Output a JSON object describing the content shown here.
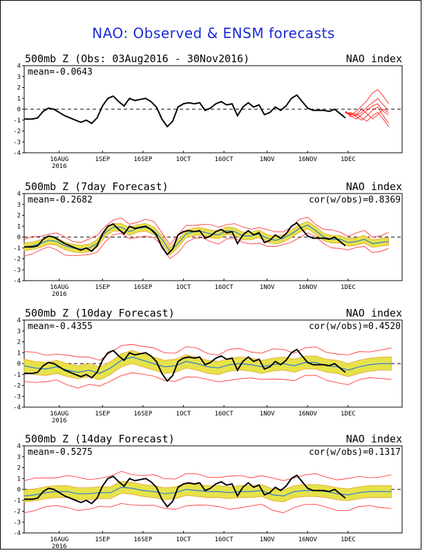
{
  "title": "NAO: Observed & ENSM forecasts",
  "colors": {
    "observed": "#000000",
    "ensemble_mean": "#2c7bd6",
    "spread_fill": "#e6e24a",
    "spread_edge": "#e8a030",
    "min_max": "#ff2020",
    "title": "#1a2bd6"
  },
  "xaxis": {
    "ticks": [
      {
        "day": 13,
        "label": "16AUG",
        "sub": "2016"
      },
      {
        "day": 29,
        "label": "1SEP",
        "sub": ""
      },
      {
        "day": 44,
        "label": "16SEP",
        "sub": ""
      },
      {
        "day": 59,
        "label": "1OCT",
        "sub": ""
      },
      {
        "day": 74,
        "label": "16OCT",
        "sub": ""
      },
      {
        "day": 90,
        "label": "1NOV",
        "sub": ""
      },
      {
        "day": 105,
        "label": "16NOV",
        "sub": ""
      },
      {
        "day": 120,
        "label": "1DEC",
        "sub": ""
      }
    ],
    "range": [
      0,
      140
    ]
  },
  "yaxis": {
    "ticks": [
      "4",
      "3",
      "2",
      "1",
      "0",
      "-1",
      "-2",
      "-3",
      "-4"
    ],
    "range": [
      -4,
      4
    ]
  },
  "panels": [
    {
      "title_left": "500mb Z (Obs: 03Aug2016 - 30Nov2016)",
      "title_right": "NAO index",
      "mean": "mean=-0.0643",
      "cor": "",
      "kind": "observed"
    },
    {
      "title_left": "500mb Z (7day Forecast)",
      "title_right": "NAO index",
      "mean": "mean=-0.2682",
      "cor": "cor(w/obs)=0.8369",
      "kind": "fc7"
    },
    {
      "title_left": "500mb Z (10day Forecast)",
      "title_right": "NAO index",
      "mean": "mean=-0.4355",
      "cor": "cor(w/obs)=0.4520",
      "kind": "fc10"
    },
    {
      "title_left": "500mb Z (14day Forecast)",
      "title_right": "NAO index",
      "mean": "mean=-0.5275",
      "cor": "cor(w/obs)=0.1317",
      "kind": "fc14"
    }
  ],
  "chart_data": {
    "type": "line",
    "x_units": "days since 03Aug2016",
    "observed": {
      "x": [
        0,
        3,
        5,
        7,
        9,
        11,
        13,
        15,
        17,
        19,
        21,
        23,
        25,
        27,
        29,
        31,
        33,
        35,
        37,
        39,
        41,
        43,
        45,
        47,
        49,
        51,
        53,
        55,
        57,
        59,
        61,
        63,
        65,
        67,
        69,
        71,
        73,
        75,
        77,
        79,
        81,
        83,
        85,
        87,
        89,
        91,
        93,
        95,
        97,
        99,
        101,
        103,
        105,
        107,
        109,
        111,
        113,
        115,
        117,
        119
      ],
      "y": [
        -0.9,
        -0.9,
        -0.8,
        -0.2,
        0.1,
        0.0,
        -0.3,
        -0.6,
        -0.8,
        -1.0,
        -1.2,
        -1.0,
        -1.3,
        -0.8,
        0.3,
        1.0,
        1.2,
        0.7,
        0.3,
        1.0,
        0.8,
        0.9,
        1.0,
        0.7,
        0.2,
        -0.9,
        -1.6,
        -1.1,
        0.2,
        0.5,
        0.6,
        0.5,
        0.6,
        -0.1,
        0.1,
        0.5,
        0.7,
        0.4,
        0.5,
        -0.6,
        0.2,
        0.6,
        0.2,
        0.4,
        -0.5,
        -0.3,
        0.2,
        -0.1,
        0.3,
        1.0,
        1.3,
        0.7,
        0.1,
        -0.1,
        -0.1,
        -0.1,
        -0.2,
        0.0,
        -0.4,
        -0.8
      ]
    },
    "extended_members": {
      "x": [
        119,
        121,
        123,
        125,
        127,
        129,
        131,
        133,
        135
      ],
      "series": [
        [
          -0.2,
          -0.5,
          -0.2,
          0.3,
          0.8,
          1.5,
          1.8,
          1.2,
          0.5
        ],
        [
          -0.3,
          -0.4,
          -0.6,
          -0.3,
          0.2,
          0.6,
          1.0,
          0.4,
          -0.1
        ],
        [
          -0.2,
          -0.6,
          -0.9,
          -0.5,
          -0.1,
          0.3,
          0.5,
          -0.2,
          -0.5
        ],
        [
          -0.4,
          -0.3,
          -0.7,
          -1.0,
          -0.6,
          -0.1,
          0.2,
          -0.6,
          -1.3
        ],
        [
          -0.3,
          -0.5,
          -0.4,
          -0.8,
          -1.1,
          -0.6,
          -0.3,
          -0.9,
          -1.6
        ],
        [
          -0.2,
          -0.7,
          -0.5,
          0.0,
          -0.4,
          -0.9,
          -0.5,
          0.0,
          -0.3
        ]
      ]
    },
    "forecast_x_range": [
      0,
      136
    ],
    "fc7_mean": {
      "x": [
        0,
        3,
        6,
        9,
        12,
        15,
        18,
        21,
        24,
        27,
        30,
        33,
        36,
        39,
        42,
        45,
        48,
        51,
        54,
        57,
        60,
        63,
        66,
        69,
        72,
        75,
        78,
        81,
        84,
        87,
        90,
        93,
        96,
        99,
        102,
        105,
        108,
        111,
        114,
        117,
        120,
        123,
        126,
        129,
        132,
        135
      ],
      "y": [
        -0.9,
        -0.8,
        -0.6,
        -0.3,
        -0.4,
        -0.8,
        -1.0,
        -1.1,
        -1.0,
        -0.6,
        0.4,
        0.9,
        0.9,
        0.5,
        0.8,
        0.9,
        0.6,
        -0.2,
        -1.3,
        -0.6,
        0.3,
        0.5,
        0.5,
        0.3,
        0.2,
        0.6,
        0.5,
        0.1,
        0.1,
        0.3,
        -0.1,
        -0.3,
        -0.1,
        0.3,
        0.8,
        1.1,
        0.6,
        0.0,
        -0.2,
        -0.2,
        -0.5,
        -0.4,
        -0.2,
        -0.6,
        -0.5,
        -0.4
      ]
    },
    "fc7_spread": 0.35,
    "fc7_minmax": 0.7,
    "fc10_mean": {
      "x": [
        0,
        4,
        8,
        12,
        16,
        20,
        24,
        28,
        32,
        36,
        40,
        44,
        48,
        52,
        56,
        60,
        64,
        68,
        72,
        76,
        80,
        84,
        88,
        92,
        96,
        100,
        104,
        108,
        112,
        116,
        120,
        124,
        128,
        132,
        136
      ],
      "y": [
        -0.2,
        -0.4,
        -0.5,
        -0.3,
        -0.6,
        -0.8,
        -0.6,
        -0.9,
        -0.4,
        0.3,
        0.6,
        0.3,
        0.0,
        -0.3,
        -0.2,
        0.2,
        0.0,
        -0.3,
        -0.4,
        -0.1,
        0.0,
        -0.1,
        -0.3,
        -0.1,
        0.0,
        -0.2,
        0.1,
        0.1,
        -0.2,
        -0.3,
        -0.6,
        -0.3,
        -0.1,
        0.0,
        0.0
      ]
    },
    "fc10_spread": 0.6,
    "fc10_minmax": 1.3,
    "fc14_mean": {
      "x": [
        0,
        4,
        8,
        12,
        16,
        20,
        24,
        28,
        32,
        36,
        40,
        44,
        48,
        52,
        56,
        60,
        64,
        68,
        72,
        76,
        80,
        84,
        88,
        92,
        96,
        100,
        104,
        108,
        112,
        116,
        120,
        124,
        128,
        132,
        136
      ],
      "y": [
        -0.6,
        -0.5,
        -0.3,
        -0.2,
        -0.2,
        -0.4,
        -0.4,
        -0.3,
        -0.3,
        0.2,
        0.1,
        -0.1,
        -0.2,
        -0.4,
        -0.3,
        0.0,
        -0.1,
        -0.2,
        -0.2,
        -0.3,
        -0.2,
        -0.2,
        -0.1,
        -0.5,
        -0.6,
        -0.2,
        -0.1,
        -0.1,
        -0.2,
        -0.4,
        -0.5,
        -0.3,
        -0.2,
        -0.2,
        -0.2
      ]
    },
    "fc14_spread": 0.55,
    "fc14_minmax": 1.4
  }
}
